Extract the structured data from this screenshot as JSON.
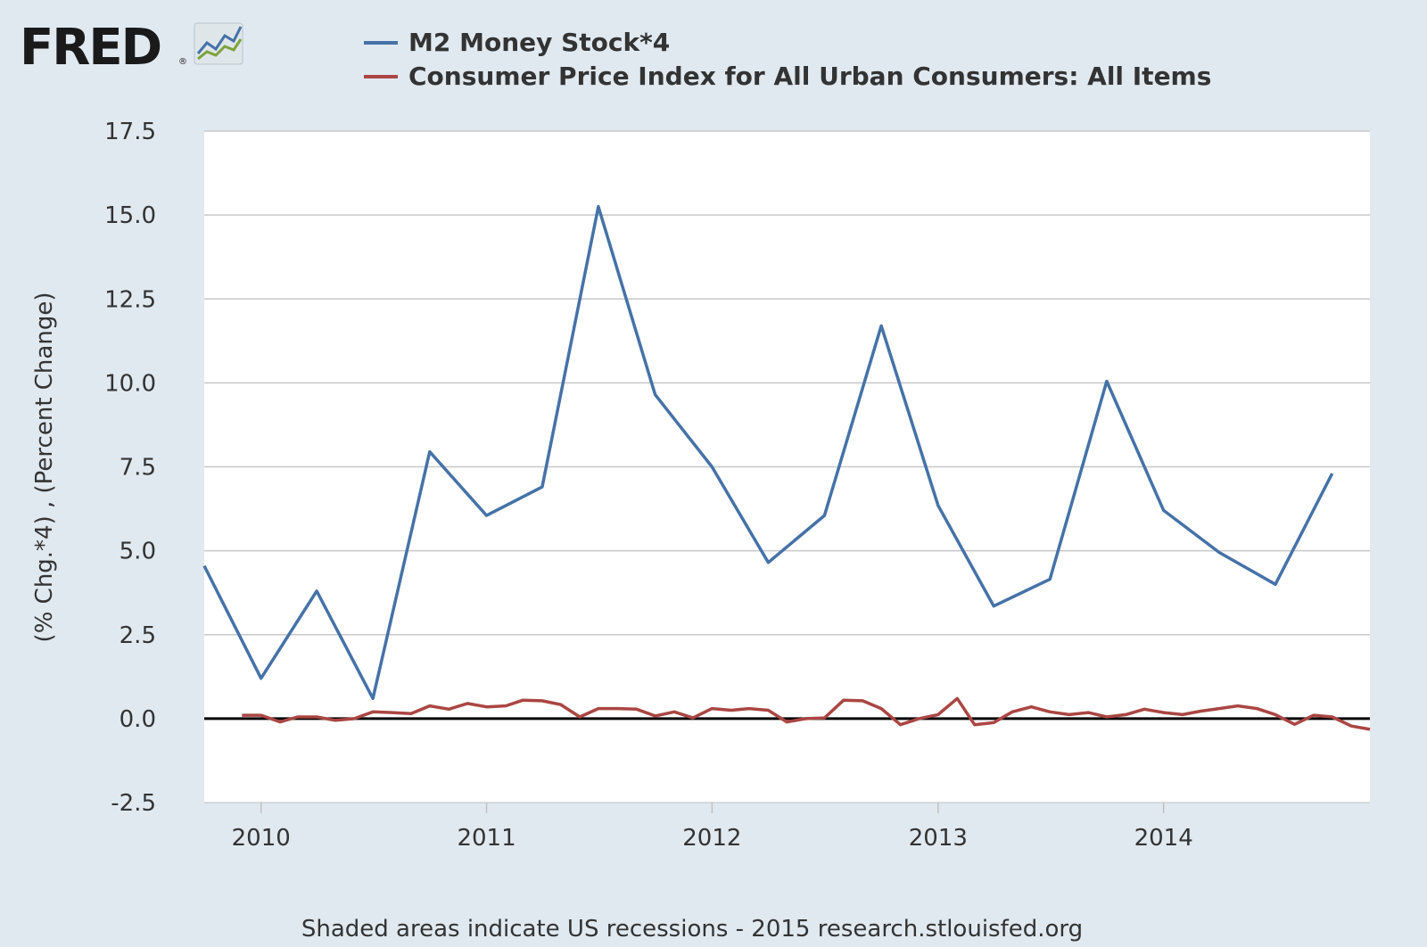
{
  "logo": {
    "text": "FRED",
    "registered": "®"
  },
  "colors": {
    "background": "#e1e9f0",
    "plot_background": "#ffffff",
    "grid": "#c8c8c8",
    "zero_line": "#000000",
    "series_m2": "#4572a7",
    "series_cpi": "#aa4643",
    "text": "#333333"
  },
  "footer": {
    "text": "Shaded areas indicate US recessions - 2015 research.stlouisfed.org"
  },
  "chart_data": {
    "type": "line",
    "ylabel": "(% Chg.*4) , (Percent Change)",
    "xlabel": "",
    "ylim": [
      -2.5,
      17.5
    ],
    "yticks": [
      "17.5",
      "15.0",
      "12.5",
      "10.0",
      "7.5",
      "5.0",
      "2.5",
      "0.0",
      "-2.5"
    ],
    "xticks": [
      "2010",
      "2011",
      "2012",
      "2013",
      "2014"
    ],
    "xlim": [
      "2009-10-01",
      "2014-12-01"
    ],
    "grid": true,
    "legend_position": "top",
    "series": [
      {
        "name": "M2 Money Stock*4",
        "color": "#4572a7",
        "points": [
          [
            "2009-10-01",
            4.55
          ],
          [
            "2010-01-01",
            1.2
          ],
          [
            "2010-04-01",
            3.8
          ],
          [
            "2010-07-01",
            0.6
          ],
          [
            "2010-10-01",
            7.95
          ],
          [
            "2011-01-01",
            6.05
          ],
          [
            "2011-04-01",
            6.9
          ],
          [
            "2011-07-01",
            15.25
          ],
          [
            "2011-10-01",
            9.65
          ],
          [
            "2012-01-01",
            7.5
          ],
          [
            "2012-04-01",
            4.65
          ],
          [
            "2012-07-01",
            6.05
          ],
          [
            "2012-10-01",
            11.7
          ],
          [
            "2013-01-01",
            6.35
          ],
          [
            "2013-04-01",
            3.35
          ],
          [
            "2013-07-01",
            4.15
          ],
          [
            "2013-10-01",
            10.05
          ],
          [
            "2014-01-01",
            6.2
          ],
          [
            "2014-04-01",
            4.95
          ],
          [
            "2014-07-01",
            4.0
          ],
          [
            "2014-10-01",
            7.3
          ]
        ]
      },
      {
        "name": "Consumer Price Index for All Urban Consumers: All Items",
        "color": "#aa4643",
        "points": [
          [
            "2009-12-01",
            0.1
          ],
          [
            "2010-01-01",
            0.1
          ],
          [
            "2010-02-01",
            -0.1
          ],
          [
            "2010-03-01",
            0.05
          ],
          [
            "2010-04-01",
            0.05
          ],
          [
            "2010-05-01",
            -0.05
          ],
          [
            "2010-06-01",
            0.0
          ],
          [
            "2010-07-01",
            0.2
          ],
          [
            "2010-08-01",
            0.18
          ],
          [
            "2010-09-01",
            0.15
          ],
          [
            "2010-10-01",
            0.38
          ],
          [
            "2010-11-01",
            0.28
          ],
          [
            "2010-12-01",
            0.45
          ],
          [
            "2011-01-01",
            0.35
          ],
          [
            "2011-02-01",
            0.38
          ],
          [
            "2011-03-01",
            0.55
          ],
          [
            "2011-04-01",
            0.53
          ],
          [
            "2011-05-01",
            0.42
          ],
          [
            "2011-06-01",
            0.05
          ],
          [
            "2011-07-01",
            0.3
          ],
          [
            "2011-08-01",
            0.3
          ],
          [
            "2011-09-01",
            0.28
          ],
          [
            "2011-10-01",
            0.08
          ],
          [
            "2011-11-01",
            0.2
          ],
          [
            "2011-12-01",
            0.02
          ],
          [
            "2012-01-01",
            0.3
          ],
          [
            "2012-02-01",
            0.25
          ],
          [
            "2012-03-01",
            0.3
          ],
          [
            "2012-04-01",
            0.25
          ],
          [
            "2012-05-01",
            -0.1
          ],
          [
            "2012-06-01",
            0.0
          ],
          [
            "2012-07-01",
            0.02
          ],
          [
            "2012-08-01",
            0.55
          ],
          [
            "2012-09-01",
            0.53
          ],
          [
            "2012-10-01",
            0.3
          ],
          [
            "2012-11-01",
            -0.18
          ],
          [
            "2012-12-01",
            0.0
          ],
          [
            "2013-01-01",
            0.12
          ],
          [
            "2013-02-01",
            0.6
          ],
          [
            "2013-03-01",
            -0.18
          ],
          [
            "2013-04-01",
            -0.12
          ],
          [
            "2013-05-01",
            0.2
          ],
          [
            "2013-06-01",
            0.35
          ],
          [
            "2013-07-01",
            0.2
          ],
          [
            "2013-08-01",
            0.12
          ],
          [
            "2013-09-01",
            0.18
          ],
          [
            "2013-10-01",
            0.05
          ],
          [
            "2013-11-01",
            0.12
          ],
          [
            "2013-12-01",
            0.28
          ],
          [
            "2014-01-01",
            0.18
          ],
          [
            "2014-02-01",
            0.12
          ],
          [
            "2014-03-01",
            0.22
          ],
          [
            "2014-04-01",
            0.3
          ],
          [
            "2014-05-01",
            0.38
          ],
          [
            "2014-06-01",
            0.3
          ],
          [
            "2014-07-01",
            0.12
          ],
          [
            "2014-08-01",
            -0.17
          ],
          [
            "2014-09-01",
            0.1
          ],
          [
            "2014-10-01",
            0.05
          ],
          [
            "2014-11-01",
            -0.22
          ],
          [
            "2014-12-01",
            -0.32
          ]
        ]
      }
    ]
  }
}
